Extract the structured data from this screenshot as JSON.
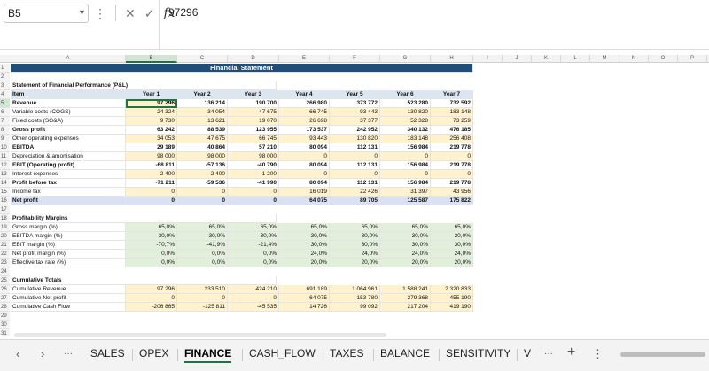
{
  "formula_bar": {
    "name_box": "B5",
    "value": "97296",
    "fx_label": "fx",
    "cancel_icon": "✕",
    "enter_icon": "✓"
  },
  "columns": [
    "A",
    "B",
    "C",
    "D",
    "E",
    "F",
    "G",
    "H",
    "I",
    "J",
    "K",
    "L",
    "M",
    "N",
    "O",
    "P"
  ],
  "rows": [
    {
      "n": "1",
      "type": "title",
      "cells": {
        "B": "Financial Statement"
      }
    },
    {
      "n": "2",
      "type": "blank",
      "cells": {}
    },
    {
      "n": "3",
      "type": "section",
      "cells": {
        "A": "Statement of Financial Performance (P&L)"
      }
    },
    {
      "n": "4",
      "type": "header",
      "cells": {
        "A": "Item",
        "B": "Year 1",
        "C": "Year 2",
        "D": "Year 3",
        "E": "Year 4",
        "F": "Year 5",
        "G": "Year 6",
        "H": "Year 7"
      }
    },
    {
      "n": "5",
      "type": "bold",
      "cells": {
        "A": "Revenue",
        "B": "97 296",
        "C": "136 214",
        "D": "190 700",
        "E": "266 980",
        "F": "373 772",
        "G": "523 280",
        "H": "732 592"
      }
    },
    {
      "n": "6",
      "type": "input",
      "cells": {
        "A": "Variable costs (COGS)",
        "B": "24 324",
        "C": "34 054",
        "D": "47 675",
        "E": "66 745",
        "F": "93 443",
        "G": "130 820",
        "H": "183 148"
      }
    },
    {
      "n": "7",
      "type": "input",
      "cells": {
        "A": "Fixed costs (SG&A)",
        "B": "9 730",
        "C": "13 621",
        "D": "19 070",
        "E": "26 698",
        "F": "37 377",
        "G": "52 328",
        "H": "73 259"
      }
    },
    {
      "n": "8",
      "type": "bold",
      "cells": {
        "A": "Gross profit",
        "B": "63 242",
        "C": "88 539",
        "D": "123 955",
        "E": "173 537",
        "F": "242 952",
        "G": "340 132",
        "H": "476 185"
      }
    },
    {
      "n": "9",
      "type": "input",
      "cells": {
        "A": "Other operating expenses",
        "B": "34 053",
        "C": "47 675",
        "D": "66 745",
        "E": "93 443",
        "F": "130 820",
        "G": "183 148",
        "H": "256 408"
      }
    },
    {
      "n": "10",
      "type": "bold",
      "cells": {
        "A": "EBITDA",
        "B": "29 189",
        "C": "40 864",
        "D": "57 210",
        "E": "80 094",
        "F": "112 131",
        "G": "156 984",
        "H": "219 778"
      }
    },
    {
      "n": "11",
      "type": "input",
      "cells": {
        "A": "Depreciation & amortisation",
        "B": "98 000",
        "C": "98 000",
        "D": "98 000",
        "E": "0",
        "F": "0",
        "G": "0",
        "H": "0"
      }
    },
    {
      "n": "12",
      "type": "bold",
      "cells": {
        "A": "EBIT (Operating profit)",
        "B": "-68 811",
        "C": "-57 136",
        "D": "-40 790",
        "E": "80 094",
        "F": "112 131",
        "G": "156 984",
        "H": "219 778"
      }
    },
    {
      "n": "13",
      "type": "input",
      "cells": {
        "A": "Interest expenses",
        "B": "2 400",
        "C": "2 400",
        "D": "1 200",
        "E": "0",
        "F": "0",
        "G": "0",
        "H": "0"
      }
    },
    {
      "n": "14",
      "type": "bold",
      "cells": {
        "A": "Profit before tax",
        "B": "-71 211",
        "C": "-59 536",
        "D": "-41 990",
        "E": "80 094",
        "F": "112 131",
        "G": "156 984",
        "H": "219 778"
      }
    },
    {
      "n": "15",
      "type": "input",
      "cells": {
        "A": "Income tax",
        "B": "0",
        "C": "0",
        "D": "0",
        "E": "16 019",
        "F": "22 426",
        "G": "31 397",
        "H": "43 956"
      }
    },
    {
      "n": "16",
      "type": "total",
      "cells": {
        "A": "Net profit",
        "B": "0",
        "C": "0",
        "D": "0",
        "E": "64 075",
        "F": "89 705",
        "G": "125 587",
        "H": "175 822"
      }
    },
    {
      "n": "17",
      "type": "blank",
      "cells": {}
    },
    {
      "n": "18",
      "type": "section",
      "cells": {
        "A": "Profitability Margins"
      }
    },
    {
      "n": "19",
      "type": "pct",
      "cells": {
        "A": "Gross margin (%)",
        "B": "65,0%",
        "C": "65,0%",
        "D": "65,0%",
        "E": "65,0%",
        "F": "65,0%",
        "G": "65,0%",
        "H": "65,0%"
      }
    },
    {
      "n": "20",
      "type": "pct",
      "cells": {
        "A": "EBITDA margin (%)",
        "B": "30,0%",
        "C": "30,0%",
        "D": "30,0%",
        "E": "30,0%",
        "F": "30,0%",
        "G": "30,0%",
        "H": "30,0%"
      }
    },
    {
      "n": "21",
      "type": "pct",
      "cells": {
        "A": "EBIT margin (%)",
        "B": "-70,7%",
        "C": "-41,9%",
        "D": "-21,4%",
        "E": "30,0%",
        "F": "30,0%",
        "G": "30,0%",
        "H": "30,0%"
      }
    },
    {
      "n": "22",
      "type": "pct",
      "cells": {
        "A": "Net profit margin (%)",
        "B": "0,0%",
        "C": "0,0%",
        "D": "0,0%",
        "E": "24,0%",
        "F": "24,0%",
        "G": "24,0%",
        "H": "24,0%"
      }
    },
    {
      "n": "23",
      "type": "pct",
      "cells": {
        "A": "Effective tax rate (%)",
        "B": "0,0%",
        "C": "0,0%",
        "D": "0,0%",
        "E": "20,0%",
        "F": "20,0%",
        "G": "20,0%",
        "H": "20,0%"
      }
    },
    {
      "n": "24",
      "type": "blank",
      "cells": {}
    },
    {
      "n": "25",
      "type": "section",
      "cells": {
        "A": "Cumulative Totals"
      }
    },
    {
      "n": "26",
      "type": "input",
      "cells": {
        "A": "Cumulative Revenue",
        "B": "97 296",
        "C": "233 510",
        "D": "424 210",
        "E": "691 189",
        "F": "1 064 961",
        "G": "1 588 241",
        "H": "2 320 833"
      }
    },
    {
      "n": "27",
      "type": "input",
      "cells": {
        "A": "Cumulative Net profit",
        "B": "0",
        "C": "0",
        "D": "0",
        "E": "64 075",
        "F": "153 780",
        "G": "279 368",
        "H": "455 190"
      }
    },
    {
      "n": "28",
      "type": "input",
      "cells": {
        "A": "Cumulative Cash Flow",
        "B": "-206 865",
        "C": "-125 811",
        "D": "-45 535",
        "E": "14 726",
        "F": "99 092",
        "G": "217 204",
        "H": "419 190"
      }
    },
    {
      "n": "29",
      "type": "blank",
      "cells": {}
    },
    {
      "n": "30",
      "type": "blank",
      "cells": {}
    },
    {
      "n": "31",
      "type": "blank",
      "cells": {}
    }
  ],
  "sheet_tabs": [
    "SALES",
    "OPEX",
    "FINANCE",
    "CASH_FLOW",
    "TAXES",
    "BALANCE",
    "SENSITIVITY",
    "V"
  ],
  "active_tab": "FINANCE",
  "tabbar": {
    "prev": "‹",
    "next": "›",
    "more_left": "···",
    "more_right": "···",
    "add": "+",
    "options": "⋮"
  }
}
